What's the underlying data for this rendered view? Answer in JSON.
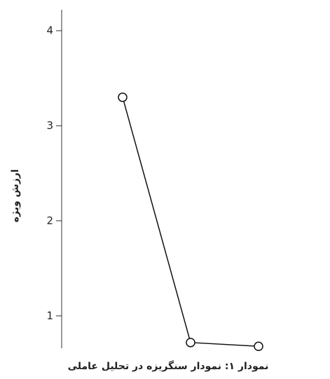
{
  "chart_data": {
    "type": "line",
    "y_label": "ارزش ویژه",
    "caption": "نمودار ۱: نمودار سنگریزه در تحلیل عاملی",
    "categories": [
      null,
      null,
      null
    ],
    "values": [
      3.3,
      0.72,
      0.68
    ],
    "color": "#111111",
    "ylim": [
      0.66,
      4.22
    ],
    "yticks": [
      1,
      2,
      3,
      4
    ],
    "grid": false
  }
}
